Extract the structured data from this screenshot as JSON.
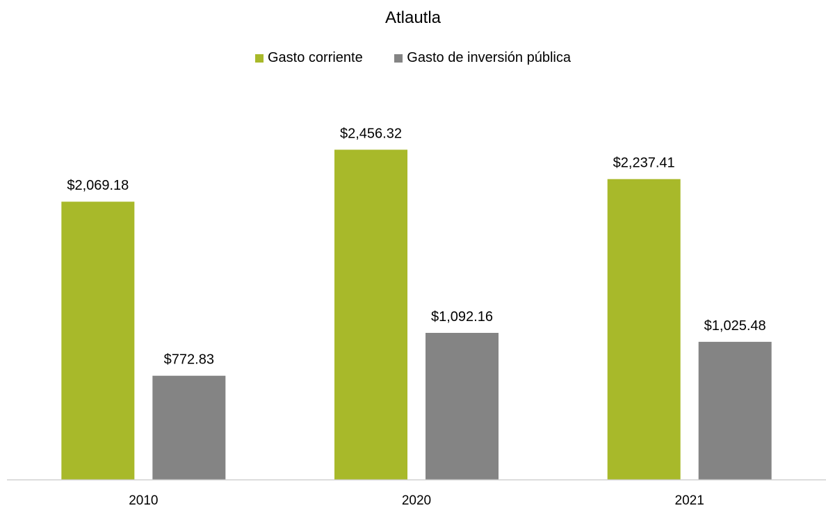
{
  "chart_data": {
    "type": "bar",
    "title": "Atlautla",
    "categories": [
      "2010",
      "2020",
      "2021"
    ],
    "series": [
      {
        "name": "Gasto corriente",
        "color": "#a8b92a",
        "values": [
          2069.18,
          2456.32,
          2237.41
        ],
        "labels": [
          "$2,069.18",
          "$2,456.32",
          "$2,237.41"
        ]
      },
      {
        "name": "Gasto de inversión pública",
        "color": "#848484",
        "values": [
          772.83,
          1092.16,
          1025.48
        ],
        "labels": [
          "$772.83",
          "$1,092.16",
          "$1,025.48"
        ]
      }
    ],
    "ylim": [
      0,
      2650
    ],
    "xlabel": "",
    "ylabel": "",
    "grid": false,
    "legend_position": "top"
  }
}
